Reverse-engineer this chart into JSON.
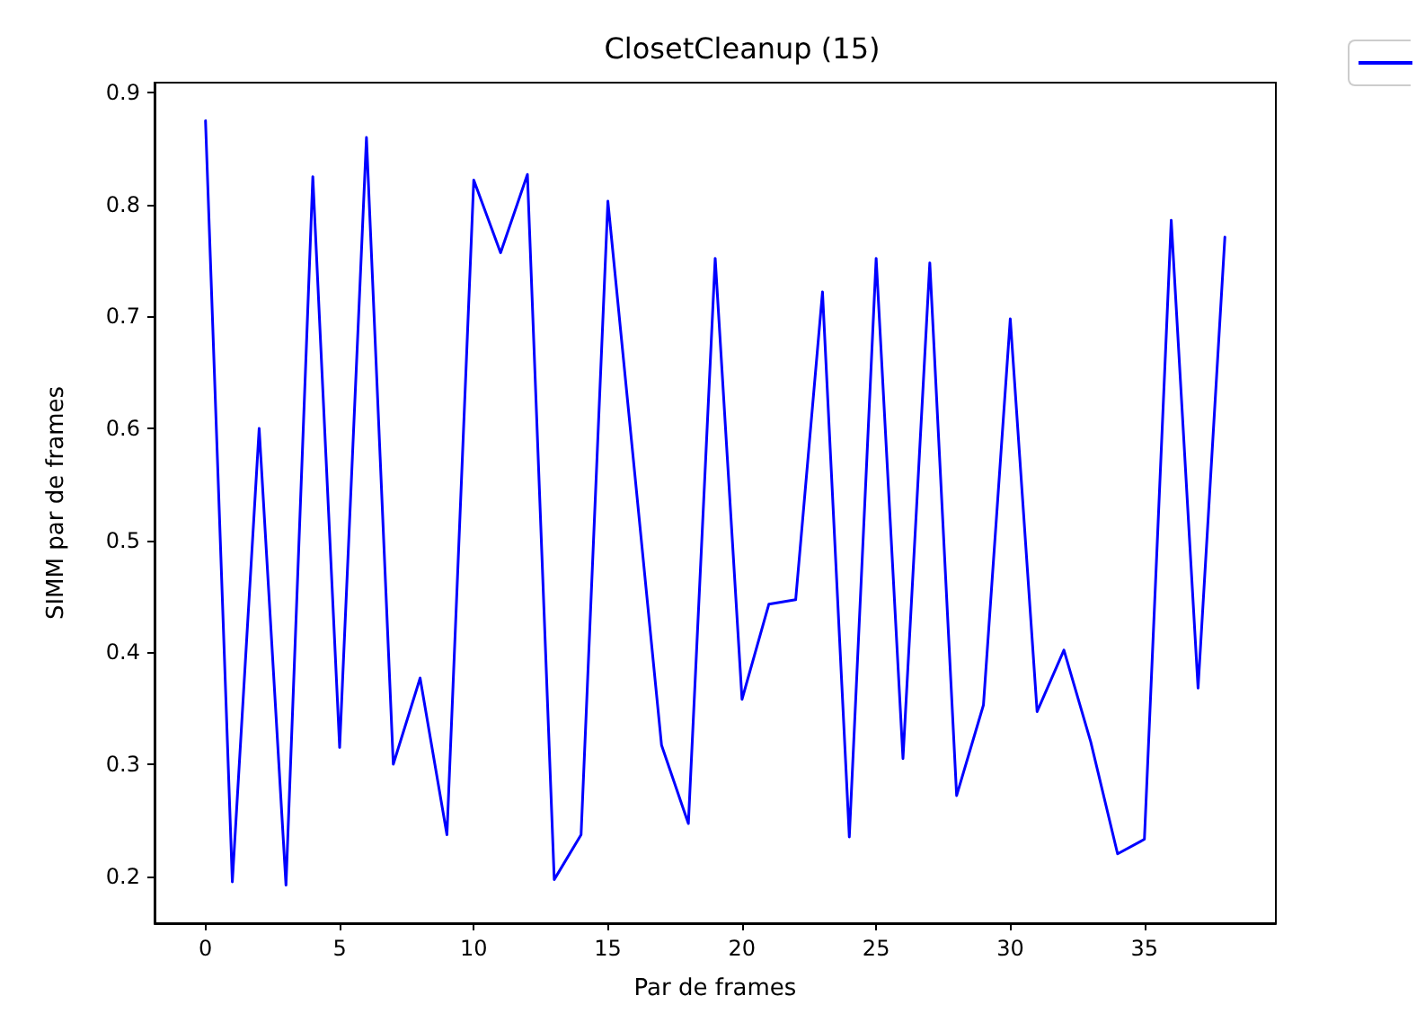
{
  "chart_data": {
    "type": "line",
    "title": "ClosetCleanup (15)",
    "xlabel": "Par de frames",
    "ylabel": "SIMM par de frames",
    "x": [
      0,
      1,
      2,
      3,
      4,
      5,
      6,
      7,
      8,
      9,
      10,
      11,
      12,
      13,
      14,
      15,
      16,
      17,
      18,
      19,
      20,
      21,
      22,
      23,
      24,
      25,
      26,
      27,
      28,
      29,
      30,
      31,
      32,
      33,
      34,
      35,
      36,
      37,
      38
    ],
    "series": [
      {
        "color": "#0000ff",
        "values": [
          0.875,
          0.195,
          0.6,
          0.192,
          0.825,
          0.315,
          0.86,
          0.3,
          0.377,
          0.237,
          0.822,
          0.757,
          0.827,
          0.197,
          0.237,
          0.803,
          0.56,
          0.317,
          0.247,
          0.752,
          0.358,
          0.443,
          0.447,
          0.722,
          0.235,
          0.752,
          0.305,
          0.748,
          0.272,
          0.353,
          0.698,
          0.347,
          0.402,
          0.32,
          0.22,
          0.233,
          0.786,
          0.368,
          0.771
        ]
      }
    ],
    "xlim": [
      -1.9,
      39.9
    ],
    "xticks": [
      0,
      5,
      10,
      15,
      20,
      25,
      30,
      35
    ],
    "ylim": [
      0.158,
      0.909
    ],
    "yticks": [
      0.2,
      0.3,
      0.4,
      0.5,
      0.6,
      0.7,
      0.8,
      0.9
    ],
    "grid": false,
    "marker": "none",
    "line_style": "solid"
  }
}
